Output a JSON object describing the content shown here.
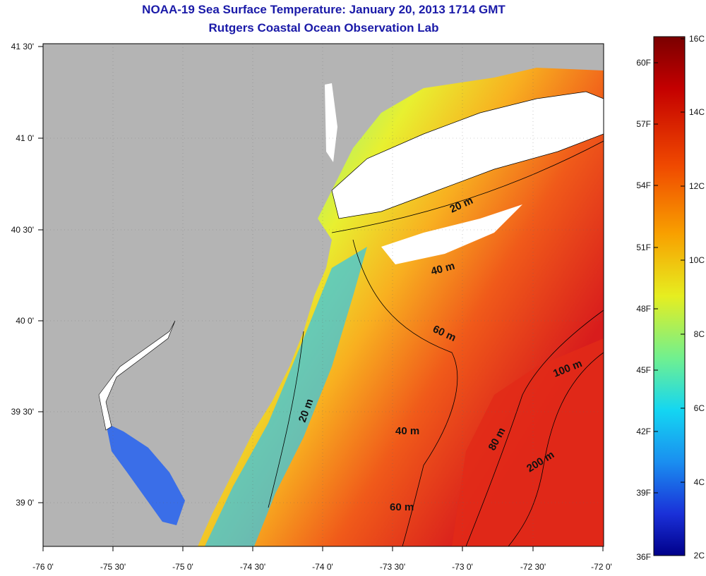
{
  "header": {
    "title": "NOAA-19 Sea Surface Temperature:  January 20, 2013 1714 GMT",
    "subtitle": "Rutgers Coastal Ocean Observation Lab"
  },
  "map": {
    "lon_range": [
      -76,
      -72
    ],
    "lat_range": [
      38.8,
      41.5
    ],
    "lon_ticks": [
      "-76 0'",
      "-75 30'",
      "-75 0'",
      "-74 30'",
      "-74 0'",
      "-73 30'",
      "-73 0'",
      "-72 30'",
      "-72 0'"
    ],
    "lat_ticks": [
      "41 30'",
      "41 0'",
      "40 30'",
      "40 0'",
      "39 30'",
      "39 0'"
    ],
    "depth_contour_labels": [
      "20 m",
      "40 m",
      "60 m",
      "20 m",
      "40 m",
      "60 m",
      "80 m",
      "100 m",
      "200 m"
    ],
    "colors": {
      "land": "#b4b4b4",
      "clouds": "#ffffff",
      "coastline": "#000000"
    }
  },
  "colorbar": {
    "fahrenheit_labels": [
      "60F",
      "57F",
      "54F",
      "51F",
      "48F",
      "45F",
      "42F",
      "39F",
      "36F"
    ],
    "celsius_labels": [
      "16C",
      "14C",
      "12C",
      "10C",
      "8C",
      "6C",
      "4C",
      "2C"
    ],
    "range_c": [
      2,
      16
    ]
  }
}
